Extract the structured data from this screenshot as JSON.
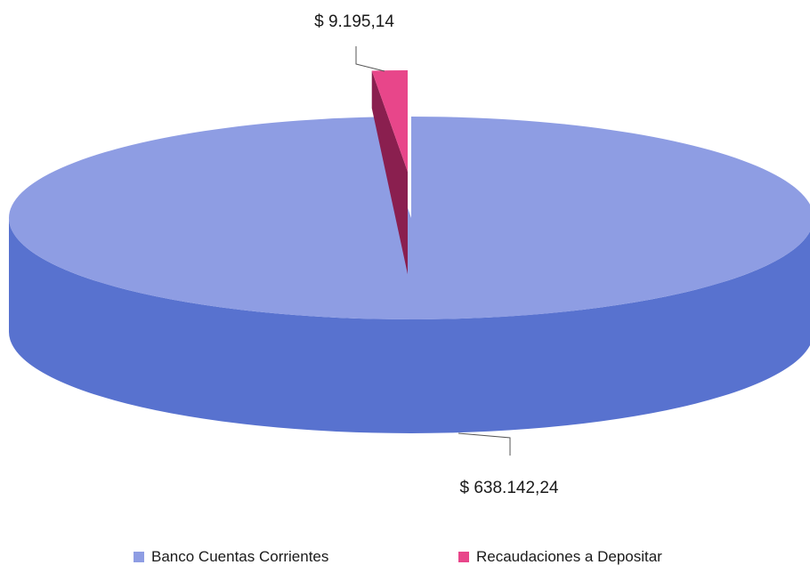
{
  "chart_data": {
    "type": "pie",
    "style": "3d",
    "slices": [
      {
        "name": "Banco Cuentas Corrientes",
        "value": 638142.24,
        "label": "$ 638.142,24",
        "color": "#8e9de3",
        "side_color": "#5872cf"
      },
      {
        "name": "Recaudaciones a Depositar",
        "value": 9195.14,
        "label": "$ 9.195,14",
        "color": "#e8468a",
        "side_color": "#8a1f4f"
      }
    ],
    "legend_position": "bottom"
  }
}
